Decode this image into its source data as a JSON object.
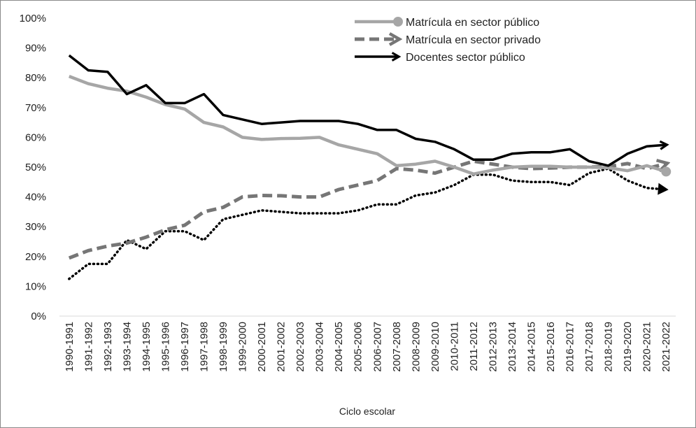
{
  "chart_data": {
    "type": "line",
    "title": "",
    "xlabel": "Ciclo escolar",
    "ylabel": "",
    "ylim": [
      0,
      100
    ],
    "yticks": [
      "0%",
      "10%",
      "20%",
      "30%",
      "40%",
      "50%",
      "60%",
      "70%",
      "80%",
      "90%",
      "100%"
    ],
    "grid": false,
    "legend_position": "top-right",
    "categories": [
      "1990-1991",
      "1991-1992",
      "1992-1993",
      "1993-1994",
      "1994-1995",
      "1995-1996",
      "1996-1997",
      "1997-1998",
      "1998-1999",
      "1999-2000",
      "2000-2001",
      "2001-2002",
      "2002-2003",
      "2003-2004",
      "2004-2005",
      "2005-2006",
      "2006-2007",
      "2007-2008",
      "2008-2009",
      "2009-2010",
      "2010-2011",
      "2011-2012",
      "2012-2013",
      "2013-2014",
      "2014-2015",
      "2015-2016",
      "2016-2017",
      "2017-2018",
      "2018-2019",
      "2019-2020",
      "2020-2021",
      "2021-2022"
    ],
    "series": [
      {
        "name": "Matrícula en sector público",
        "color": "#a6a6a6",
        "style": "solid",
        "marker": "circle-end",
        "values": [
          80.5,
          78,
          76.5,
          75.5,
          73.5,
          71,
          69.5,
          65,
          63.5,
          60,
          59.3,
          59.6,
          59.7,
          60,
          57.5,
          56,
          54.5,
          50.5,
          51,
          52,
          50,
          47.7,
          49,
          50,
          50.3,
          50.3,
          50,
          50,
          49.8,
          48.8,
          50.5,
          48.5
        ]
      },
      {
        "name": "Matrícula en sector privado",
        "color": "#767676",
        "style": "dashed",
        "marker": "arrow-end",
        "values": [
          19.5,
          22,
          23.5,
          24.5,
          26.5,
          29,
          30.5,
          35,
          36.5,
          40,
          40.5,
          40.4,
          40,
          40,
          42.5,
          44,
          45.5,
          49.5,
          49,
          48,
          50,
          52,
          51,
          50,
          49.5,
          49.7,
          50,
          50,
          50.2,
          51.2,
          49.5,
          51.2
        ]
      },
      {
        "name": "Docentes sector público",
        "color": "#000000",
        "style": "solid",
        "marker": "arrow-end",
        "values": [
          87.5,
          82.5,
          82,
          74.5,
          77.5,
          71.5,
          71.5,
          74.5,
          67.5,
          66,
          64.5,
          65,
          65.5,
          65.5,
          65.5,
          64.5,
          62.5,
          62.5,
          59.5,
          58.5,
          56,
          52.5,
          52.5,
          54.5,
          55,
          55,
          56,
          52,
          50.5,
          54.5,
          57,
          57.5
        ]
      },
      {
        "name": "",
        "color": "#000000",
        "style": "dotted",
        "marker": "arrow-end",
        "values": [
          12.5,
          17.5,
          17.5,
          25.5,
          22.5,
          28.5,
          28.5,
          25.5,
          32.5,
          34,
          35.5,
          35,
          34.5,
          34.5,
          34.5,
          35.5,
          37.5,
          37.5,
          40.5,
          41.5,
          44,
          47.5,
          47.5,
          45.5,
          45,
          45,
          44,
          48,
          49.5,
          45.5,
          43,
          42.5
        ]
      }
    ]
  }
}
